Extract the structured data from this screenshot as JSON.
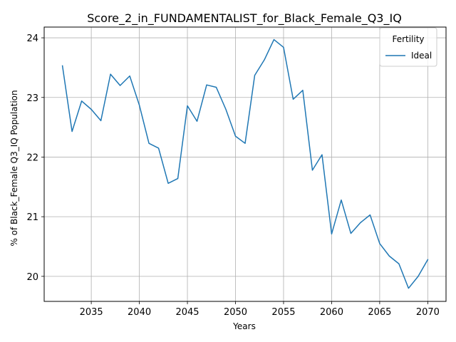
{
  "chart_data": {
    "type": "line",
    "title": "Score_2_in_FUNDAMENTALIST_for_Black_Female_Q3_IQ",
    "xlabel": "Years",
    "ylabel": "% of Black_Female Q3_IQ Population",
    "xlim": [
      2030.1,
      2071.9
    ],
    "ylim": [
      19.58,
      24.18
    ],
    "xticks": [
      2035,
      2040,
      2045,
      2050,
      2055,
      2060,
      2065,
      2070
    ],
    "yticks": [
      20,
      21,
      22,
      23,
      24
    ],
    "grid": true,
    "legend": {
      "title": "Fertility",
      "placement": "top-right"
    },
    "series": [
      {
        "name": "Ideal",
        "color": "#1f77b4",
        "x": [
          2032,
          2033,
          2034,
          2035,
          2036,
          2037,
          2038,
          2039,
          2040,
          2041,
          2042,
          2043,
          2044,
          2045,
          2046,
          2047,
          2048,
          2049,
          2050,
          2051,
          2052,
          2053,
          2054,
          2055,
          2056,
          2057,
          2058,
          2059,
          2060,
          2061,
          2062,
          2063,
          2064,
          2065,
          2066,
          2067,
          2068,
          2069,
          2070
        ],
        "y": [
          23.53,
          22.43,
          22.94,
          22.8,
          22.61,
          23.39,
          23.2,
          23.36,
          22.87,
          22.23,
          22.15,
          21.56,
          21.64,
          22.86,
          22.6,
          23.21,
          23.17,
          22.8,
          22.35,
          22.23,
          23.37,
          23.63,
          23.97,
          23.84,
          22.97,
          23.12,
          21.78,
          22.04,
          20.71,
          21.28,
          20.72,
          20.9,
          21.03,
          20.55,
          20.34,
          20.21,
          19.8,
          20.0,
          20.28
        ]
      }
    ]
  }
}
